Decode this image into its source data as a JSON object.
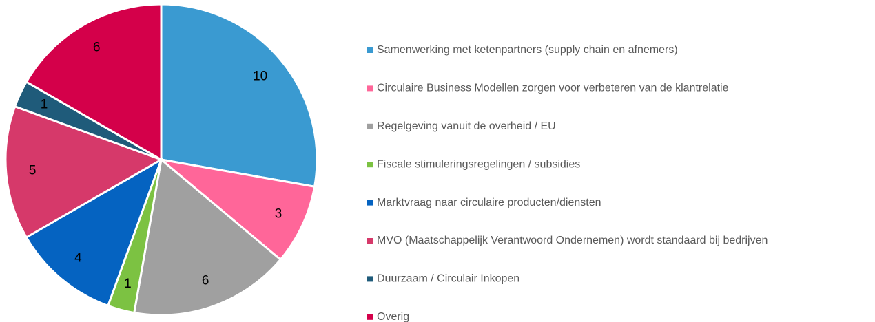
{
  "chart_data": {
    "type": "pie",
    "categories": [
      "Samenwerking met ketenpartners (supply chain en afnemers)",
      "Circulaire Business Modellen zorgen voor verbeteren van de klantrelatie",
      "Regelgeving vanuit de overheid / EU",
      "Fiscale stimuleringsregelingen / subsidies",
      "Marktvraag naar circulaire producten/diensten",
      "MVO (Maatschappelijk Verantwoord Ondernemen) wordt standaard bij bedrijven",
      "Duurzaam / Circulair Inkopen",
      "Overig"
    ],
    "values": [
      10,
      3,
      6,
      1,
      4,
      5,
      1,
      6
    ],
    "colors": [
      "#3a9ad1",
      "#ff6699",
      "#a0a0a0",
      "#7cc242",
      "#0563c1",
      "#d6396a",
      "#1f5b7a",
      "#d4004a"
    ],
    "legend": "right"
  }
}
